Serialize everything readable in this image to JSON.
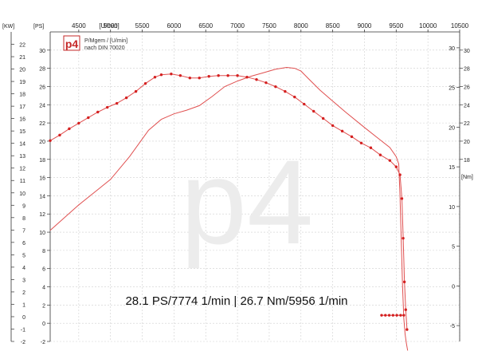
{
  "chart_data": {
    "type": "line",
    "title": "",
    "subtitle": "",
    "legend_lines": [
      "P/Mgem / [U/min]",
      "nach DIN 70020"
    ],
    "logo_text": "p4",
    "watermark_text": "p4",
    "summary_text": "28.1 PS/7774 1/min | 26.7 Nm/5956 1/min",
    "x_axis": {
      "unit_label": "[U/min]",
      "range": [
        4050,
        10500
      ],
      "ticks": [
        4500,
        5000,
        5500,
        6000,
        6500,
        7000,
        7500,
        8000,
        8500,
        9000,
        9500,
        10000,
        10500
      ],
      "tick_labels": [
        "4500",
        "5000",
        "5500",
        "6000",
        "6500",
        "7000",
        "7500",
        "8000",
        "8500",
        "9000",
        "9500",
        "10000",
        "10500"
      ]
    },
    "axis_kw": {
      "unit_label": "[KW]",
      "range": [
        -2,
        23
      ],
      "ticks": [
        -2,
        -1,
        0,
        1,
        2,
        3,
        4,
        5,
        6,
        7,
        8,
        9,
        10,
        11,
        12,
        13,
        14,
        15,
        16,
        17,
        18,
        19,
        20,
        21,
        22
      ]
    },
    "axis_ps": {
      "unit_label": "[PS]",
      "range": [
        -2,
        32
      ],
      "ticks": [
        -2,
        0,
        2,
        4,
        6,
        8,
        10,
        12,
        14,
        16,
        18,
        20,
        22,
        24,
        26,
        28,
        30
      ],
      "right_ticks": [
        -2,
        0,
        2,
        4,
        6,
        8,
        10,
        12,
        14,
        16,
        18,
        20,
        22,
        24,
        26,
        28,
        30
      ]
    },
    "axis_nm": {
      "unit_label": "[Nm]",
      "range": [
        -7,
        32
      ],
      "ticks": [
        -5,
        0,
        5,
        10,
        15,
        20,
        25,
        30
      ]
    },
    "grid": true,
    "colors": {
      "curve": "#e05050",
      "marker": "#d42020",
      "grid": "#cfcfcf",
      "axis": "#333333",
      "logo": "#c62828"
    },
    "series": [
      {
        "name": "PS",
        "axis": "ps",
        "markers": false,
        "x": [
          4050,
          4500,
          5000,
          5300,
          5600,
          5800,
          6000,
          6200,
          6400,
          6600,
          6800,
          7000,
          7200,
          7400,
          7600,
          7774,
          7900,
          8000,
          8100,
          8300,
          8500,
          8700,
          9000,
          9200,
          9400,
          9500,
          9540,
          9560,
          9580,
          9600,
          9620,
          9640,
          9660,
          9680
        ],
        "y": [
          10.2,
          13.0,
          15.8,
          18.3,
          21.2,
          22.4,
          23.0,
          23.4,
          23.9,
          24.9,
          26.0,
          26.6,
          27.1,
          27.5,
          27.9,
          28.1,
          28.0,
          27.7,
          27.0,
          25.6,
          24.4,
          23.2,
          21.5,
          20.4,
          19.3,
          18.3,
          17.5,
          14.0,
          9.0,
          4.0,
          0.5,
          -1.2,
          -2.2,
          -3.0
        ]
      },
      {
        "name": "Nm",
        "axis": "nm",
        "markers": true,
        "x": [
          4050,
          4200,
          4350,
          4500,
          4650,
          4800,
          4950,
          5100,
          5250,
          5400,
          5550,
          5700,
          5800,
          5956,
          6100,
          6250,
          6400,
          6550,
          6700,
          6850,
          7000,
          7150,
          7300,
          7450,
          7600,
          7750,
          7900,
          8050,
          8200,
          8350,
          8500,
          8650,
          8800,
          8950,
          9100,
          9250,
          9400,
          9500,
          9560,
          9590,
          9610,
          9630,
          9650,
          9670
        ],
        "y": [
          18.3,
          19.0,
          19.8,
          20.5,
          21.2,
          21.9,
          22.5,
          23.0,
          23.7,
          24.5,
          25.5,
          26.3,
          26.6,
          26.7,
          26.5,
          26.2,
          26.2,
          26.4,
          26.5,
          26.5,
          26.5,
          26.3,
          26.0,
          25.6,
          25.1,
          24.5,
          23.8,
          22.9,
          22.0,
          21.1,
          20.2,
          19.5,
          18.8,
          18.0,
          17.4,
          16.5,
          15.8,
          15.0,
          14.0,
          11.0,
          6.0,
          0.5,
          -3.0,
          -5.5
        ]
      },
      {
        "name": "Nm-offset",
        "axis": "nm",
        "markers": true,
        "x": [
          9270,
          9330,
          9390,
          9450,
          9510,
          9570,
          9620
        ],
        "y": [
          -3.7,
          -3.7,
          -3.7,
          -3.7,
          -3.7,
          -3.7,
          -3.7
        ]
      }
    ]
  }
}
